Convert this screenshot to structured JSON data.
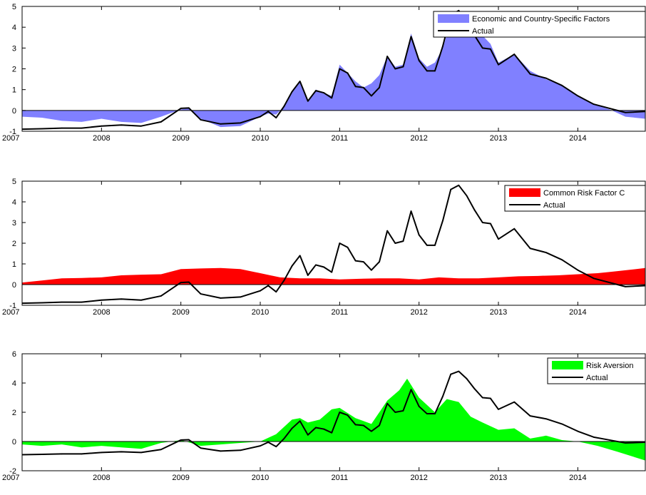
{
  "colors": {
    "economic_fill": "#8080FF",
    "common_fill": "#FF0000",
    "risk_fill": "#00FF00",
    "actual_line": "#000000"
  },
  "chart_data": [
    {
      "type": "area",
      "legend_position": "top-right",
      "ylim": [
        -1,
        5
      ],
      "yticks": [
        -1,
        0,
        1,
        2,
        3,
        4,
        5
      ],
      "xlim": [
        2007,
        2014.85
      ],
      "xticks": [
        2007,
        2008,
        2009,
        2010,
        2011,
        2012,
        2013,
        2014
      ],
      "series": [
        {
          "name": "Economic and Country-Specific Factors",
          "kind": "area",
          "x": [
            2007,
            2007.25,
            2007.5,
            2007.75,
            2008,
            2008.25,
            2008.5,
            2008.75,
            2009,
            2009.1,
            2009.25,
            2009.5,
            2009.75,
            2010,
            2010.1,
            2010.2,
            2010.3,
            2010.4,
            2010.5,
            2010.6,
            2010.7,
            2010.8,
            2010.9,
            2011,
            2011.1,
            2011.2,
            2011.3,
            2011.4,
            2011.5,
            2011.6,
            2011.7,
            2011.8,
            2011.9,
            2012,
            2012.1,
            2012.2,
            2012.3,
            2012.4,
            2012.5,
            2012.6,
            2012.7,
            2012.8,
            2012.9,
            2013,
            2013.2,
            2013.4,
            2013.6,
            2013.8,
            2014,
            2014.2,
            2014.4,
            2014.6,
            2014.85
          ],
          "values": [
            -0.3,
            -0.35,
            -0.5,
            -0.55,
            -0.4,
            -0.55,
            -0.6,
            -0.3,
            0.05,
            0.1,
            -0.4,
            -0.8,
            -0.75,
            -0.3,
            -0.15,
            -0.2,
            0.2,
            0.9,
            1.35,
            0.45,
            1.0,
            0.85,
            0.7,
            2.2,
            1.8,
            1.4,
            1.1,
            1.3,
            1.7,
            2.6,
            2.1,
            2.2,
            3.7,
            2.5,
            2.1,
            2.3,
            3.0,
            4.3,
            4.6,
            4.5,
            4.1,
            3.6,
            3.2,
            2.3,
            2.7,
            1.9,
            1.5,
            1.2,
            0.7,
            0.3,
            0.05,
            -0.3,
            -0.4
          ]
        },
        {
          "name": "Actual",
          "kind": "line",
          "x": [
            2007,
            2007.25,
            2007.5,
            2007.75,
            2008,
            2008.25,
            2008.5,
            2008.75,
            2009,
            2009.1,
            2009.25,
            2009.5,
            2009.75,
            2010,
            2010.1,
            2010.2,
            2010.3,
            2010.4,
            2010.5,
            2010.6,
            2010.7,
            2010.8,
            2010.9,
            2011,
            2011.1,
            2011.2,
            2011.3,
            2011.4,
            2011.5,
            2011.6,
            2011.7,
            2011.8,
            2011.9,
            2012,
            2012.1,
            2012.2,
            2012.3,
            2012.4,
            2012.5,
            2012.6,
            2012.7,
            2012.8,
            2012.9,
            2013,
            2013.2,
            2013.4,
            2013.6,
            2013.8,
            2014,
            2014.2,
            2014.4,
            2014.6,
            2014.85
          ],
          "values": [
            -0.9,
            -0.88,
            -0.85,
            -0.85,
            -0.75,
            -0.7,
            -0.75,
            -0.55,
            0.1,
            0.12,
            -0.45,
            -0.65,
            -0.6,
            -0.3,
            -0.05,
            -0.35,
            0.2,
            0.9,
            1.4,
            0.45,
            0.95,
            0.85,
            0.6,
            2.0,
            1.8,
            1.15,
            1.1,
            0.7,
            1.1,
            2.6,
            2.0,
            2.1,
            3.55,
            2.4,
            1.9,
            1.9,
            3.1,
            4.6,
            4.8,
            4.3,
            3.6,
            3.0,
            2.95,
            2.2,
            2.7,
            1.75,
            1.55,
            1.2,
            0.7,
            0.3,
            0.1,
            -0.1,
            -0.05
          ]
        }
      ]
    },
    {
      "type": "area",
      "legend_position": "top-right",
      "ylim": [
        -1,
        5
      ],
      "yticks": [
        -1,
        0,
        1,
        2,
        3,
        4,
        5
      ],
      "xlim": [
        2007,
        2014.85
      ],
      "xticks": [
        2007,
        2008,
        2009,
        2010,
        2011,
        2012,
        2013,
        2014
      ],
      "series": [
        {
          "name": "Common Risk Factor C",
          "kind": "area",
          "x": [
            2007,
            2007.25,
            2007.5,
            2007.75,
            2008,
            2008.25,
            2008.5,
            2008.75,
            2009,
            2009.25,
            2009.5,
            2009.75,
            2010,
            2010.25,
            2010.5,
            2010.75,
            2011,
            2011.25,
            2011.5,
            2011.75,
            2012,
            2012.25,
            2012.5,
            2012.75,
            2013,
            2013.25,
            2013.5,
            2013.75,
            2014,
            2014.25,
            2014.5,
            2014.85
          ],
          "values": [
            0.1,
            0.2,
            0.3,
            0.32,
            0.35,
            0.45,
            0.48,
            0.5,
            0.75,
            0.78,
            0.8,
            0.75,
            0.55,
            0.35,
            0.3,
            0.3,
            0.25,
            0.28,
            0.3,
            0.3,
            0.25,
            0.35,
            0.3,
            0.3,
            0.35,
            0.4,
            0.42,
            0.45,
            0.5,
            0.55,
            0.65,
            0.8
          ]
        },
        {
          "name": "Actual",
          "kind": "line",
          "x": [
            2007,
            2007.25,
            2007.5,
            2007.75,
            2008,
            2008.25,
            2008.5,
            2008.75,
            2009,
            2009.1,
            2009.25,
            2009.5,
            2009.75,
            2010,
            2010.1,
            2010.2,
            2010.3,
            2010.4,
            2010.5,
            2010.6,
            2010.7,
            2010.8,
            2010.9,
            2011,
            2011.1,
            2011.2,
            2011.3,
            2011.4,
            2011.5,
            2011.6,
            2011.7,
            2011.8,
            2011.9,
            2012,
            2012.1,
            2012.2,
            2012.3,
            2012.4,
            2012.5,
            2012.6,
            2012.7,
            2012.8,
            2012.9,
            2013,
            2013.2,
            2013.4,
            2013.6,
            2013.8,
            2014,
            2014.2,
            2014.4,
            2014.6,
            2014.85
          ],
          "values": [
            -0.9,
            -0.88,
            -0.85,
            -0.85,
            -0.75,
            -0.7,
            -0.75,
            -0.55,
            0.1,
            0.12,
            -0.45,
            -0.65,
            -0.6,
            -0.3,
            -0.05,
            -0.35,
            0.2,
            0.9,
            1.4,
            0.45,
            0.95,
            0.85,
            0.6,
            2.0,
            1.8,
            1.15,
            1.1,
            0.7,
            1.1,
            2.6,
            2.0,
            2.1,
            3.55,
            2.4,
            1.9,
            1.9,
            3.1,
            4.6,
            4.8,
            4.3,
            3.6,
            3.0,
            2.95,
            2.2,
            2.7,
            1.75,
            1.55,
            1.2,
            0.7,
            0.3,
            0.1,
            -0.1,
            -0.05
          ]
        }
      ]
    },
    {
      "type": "area",
      "legend_position": "top-right",
      "ylim": [
        -2,
        6
      ],
      "yticks": [
        -2,
        0,
        2,
        4,
        6
      ],
      "xlim": [
        2007,
        2014.85
      ],
      "xticks": [
        2007,
        2008,
        2009,
        2010,
        2011,
        2012,
        2013,
        2014
      ],
      "series": [
        {
          "name": "Risk Aversion",
          "kind": "area",
          "x": [
            2007,
            2007.25,
            2007.5,
            2007.75,
            2008,
            2008.25,
            2008.5,
            2008.75,
            2009,
            2009.25,
            2009.5,
            2009.75,
            2010,
            2010.2,
            2010.4,
            2010.5,
            2010.6,
            2010.75,
            2010.9,
            2011,
            2011.2,
            2011.4,
            2011.6,
            2011.75,
            2011.85,
            2012,
            2012.2,
            2012.35,
            2012.5,
            2012.65,
            2012.8,
            2013,
            2013.2,
            2013.4,
            2013.6,
            2013.8,
            2014,
            2014.25,
            2014.5,
            2014.85
          ],
          "values": [
            -0.2,
            -0.3,
            -0.2,
            -0.4,
            -0.3,
            -0.4,
            -0.5,
            -0.1,
            0.1,
            -0.3,
            -0.2,
            -0.1,
            0.0,
            0.5,
            1.5,
            1.6,
            1.3,
            1.5,
            2.2,
            2.3,
            1.6,
            1.2,
            2.8,
            3.5,
            4.3,
            3.0,
            2.0,
            2.9,
            2.7,
            1.7,
            1.3,
            0.8,
            0.9,
            0.2,
            0.4,
            0.1,
            0.0,
            -0.3,
            -0.7,
            -1.3
          ]
        },
        {
          "name": "Actual",
          "kind": "line",
          "x": [
            2007,
            2007.25,
            2007.5,
            2007.75,
            2008,
            2008.25,
            2008.5,
            2008.75,
            2009,
            2009.1,
            2009.25,
            2009.5,
            2009.75,
            2010,
            2010.1,
            2010.2,
            2010.3,
            2010.4,
            2010.5,
            2010.6,
            2010.7,
            2010.8,
            2010.9,
            2011,
            2011.1,
            2011.2,
            2011.3,
            2011.4,
            2011.5,
            2011.6,
            2011.7,
            2011.8,
            2011.9,
            2012,
            2012.1,
            2012.2,
            2012.3,
            2012.4,
            2012.5,
            2012.6,
            2012.7,
            2012.8,
            2012.9,
            2013,
            2013.2,
            2013.4,
            2013.6,
            2013.8,
            2014,
            2014.2,
            2014.4,
            2014.6,
            2014.85
          ],
          "values": [
            -0.9,
            -0.88,
            -0.85,
            -0.85,
            -0.75,
            -0.7,
            -0.75,
            -0.55,
            0.1,
            0.12,
            -0.45,
            -0.65,
            -0.6,
            -0.3,
            -0.05,
            -0.35,
            0.2,
            0.9,
            1.4,
            0.45,
            0.95,
            0.85,
            0.6,
            2.0,
            1.8,
            1.15,
            1.1,
            0.7,
            1.1,
            2.6,
            2.0,
            2.1,
            3.55,
            2.4,
            1.9,
            1.9,
            3.1,
            4.6,
            4.8,
            4.3,
            3.6,
            3.0,
            2.95,
            2.2,
            2.7,
            1.75,
            1.55,
            1.2,
            0.7,
            0.3,
            0.1,
            -0.1,
            -0.05
          ]
        }
      ]
    }
  ]
}
